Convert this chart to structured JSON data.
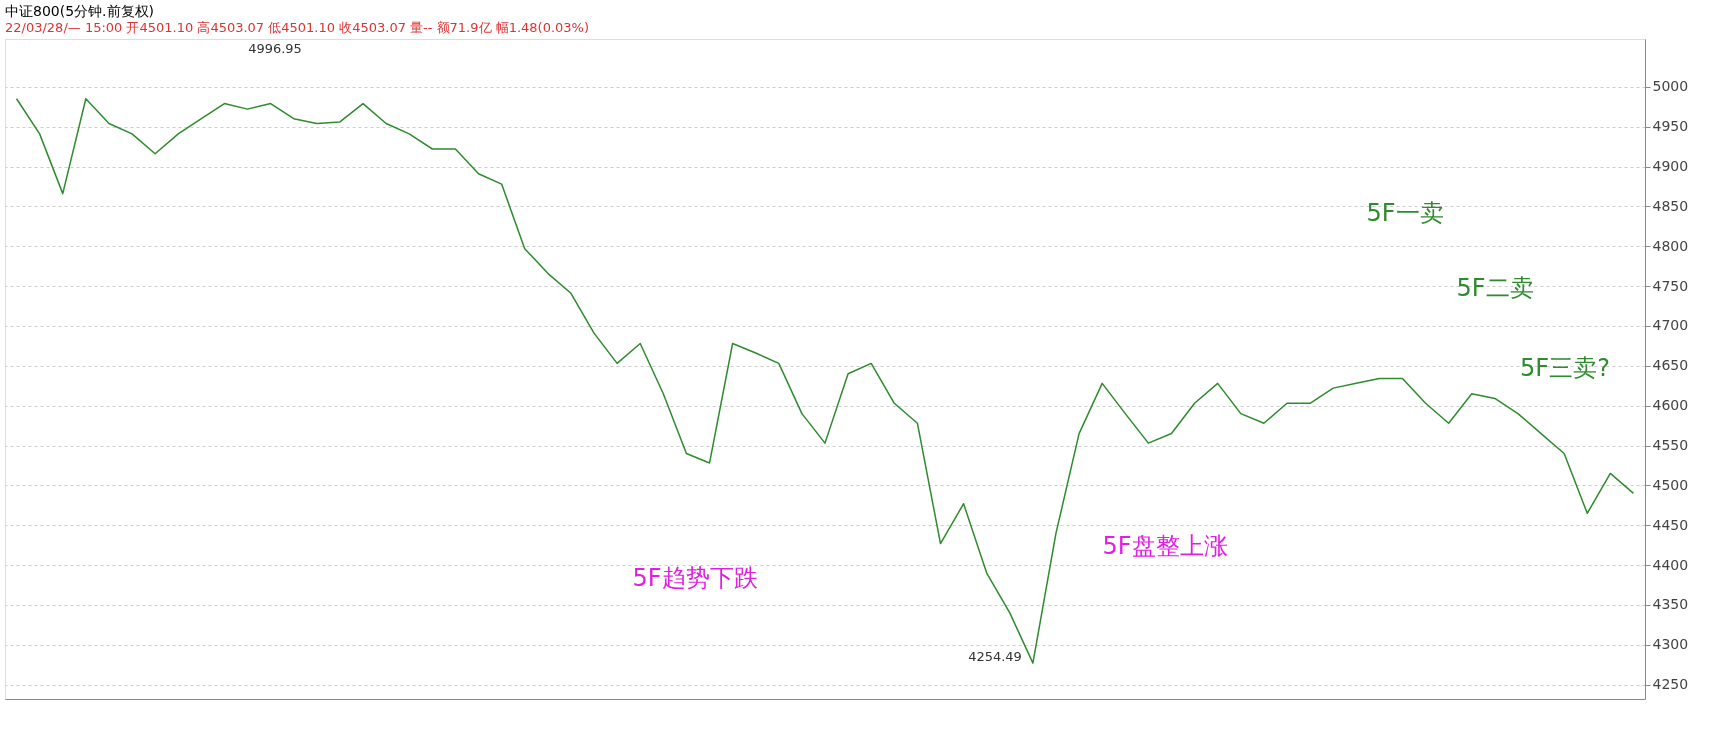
{
  "chart_data": {
    "type": "line",
    "title": "中证800(5分钟.前复权)",
    "subtitle": "22/03/28/— 15:00 开4501.10 高4503.07 低4501.10 收4503.07 量-- 额71.9亿 幅1.48(0.03%)",
    "categories": [
      null,
      null,
      null,
      null,
      null,
      null,
      null,
      null,
      null,
      null,
      null,
      null,
      null,
      null,
      null,
      null,
      null,
      null,
      null,
      null,
      null,
      null,
      null,
      null,
      null,
      null,
      null,
      null,
      null,
      null,
      null,
      null,
      null,
      null,
      null,
      null,
      null,
      null,
      null,
      null,
      null,
      null,
      null,
      null,
      null,
      null,
      null,
      null,
      null,
      null,
      null,
      null,
      null,
      null,
      null,
      null,
      null,
      null,
      null,
      null,
      null,
      null,
      null,
      null,
      null,
      null,
      null,
      null,
      null,
      null,
      null
    ],
    "series": [
      {
        "color": "#2e8b2e",
        "values": [
          4985,
          4941,
          4866,
          4985,
          4954,
          4941,
          4916,
          4941,
          4960,
          4979,
          4972,
          4979,
          4960,
          4954,
          4956,
          4979,
          4954,
          4941,
          4922,
          4922,
          4891,
          4878,
          4797,
          4766,
          4741,
          4691,
          4653,
          4678,
          4615,
          4540,
          4528,
          4678,
          4666,
          4653,
          4590,
          4553,
          4640,
          4653,
          4603,
          4578,
          4427,
          4477,
          4390,
          4340,
          4277,
          4440,
          4565,
          4628,
          4590,
          4553,
          4565,
          4603,
          4628,
          4590,
          4578,
          4603,
          4603,
          4622,
          4628,
          4634,
          4634,
          4603,
          4578,
          4615,
          4609,
          4590,
          4565,
          4540,
          4465,
          4515,
          4490
        ]
      }
    ],
    "ylim": [
      4232,
      5060
    ],
    "yticks": [
      4250,
      4300,
      4350,
      4400,
      4450,
      4500,
      4550,
      4600,
      4650,
      4700,
      4750,
      4800,
      4850,
      4900,
      4950,
      5000
    ],
    "grid": "y",
    "tick_labels": "y",
    "marker": "none",
    "line_style": "solid",
    "annotations": [
      "4996.95",
      "4254.49",
      "5F趋势下跌",
      "5F盘整上涨",
      "5F一卖",
      "5F二卖",
      "5F三卖?"
    ]
  }
}
